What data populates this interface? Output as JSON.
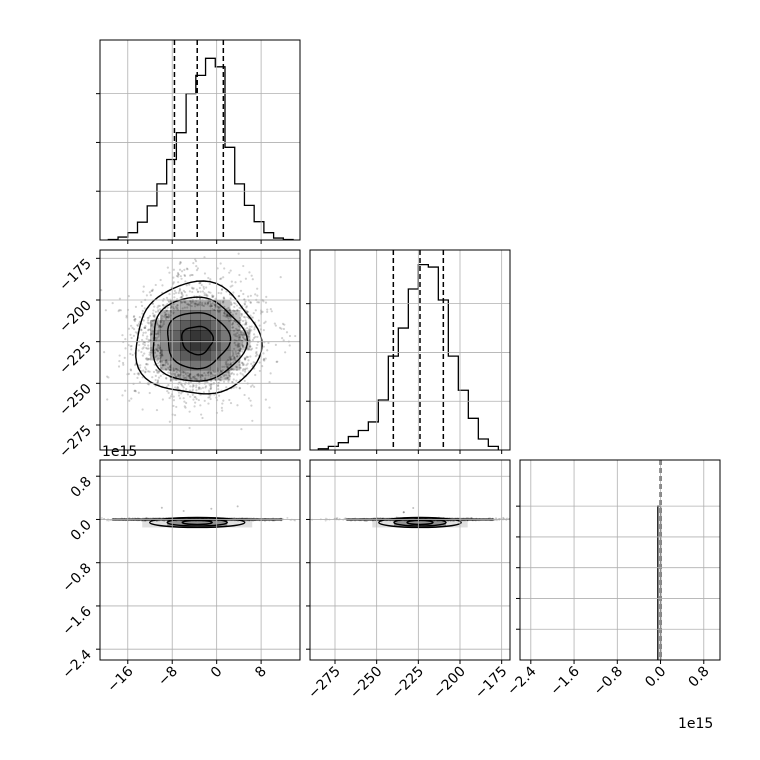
{
  "chart_data": {
    "type": "corner",
    "title": "",
    "parameters": [
      "",
      "",
      ""
    ],
    "grid": true,
    "quantiles": [
      0.16,
      0.5,
      0.84
    ],
    "offset_labels": {
      "param3": "1e15"
    },
    "colors": {
      "line": "#000000",
      "grid": "#b0b0b0",
      "hist2d": "#000000"
    },
    "histograms": [
      {
        "param": 0,
        "range": [
          -21,
          15
        ],
        "bin_edges": [
          -19.5,
          -17.75,
          -16,
          -14.25,
          -12.5,
          -10.75,
          -9,
          -7.25,
          -5.5,
          -3.75,
          -2,
          -0.25,
          1.5,
          3.25,
          5,
          6.75,
          8.5,
          10.25,
          12,
          13.75
        ],
        "counts": [
          2,
          12,
          30,
          73,
          140,
          230,
          330,
          440,
          600,
          675,
          745,
          710,
          380,
          230,
          142,
          75,
          30,
          8,
          2
        ],
        "ylim": [
          0,
          820
        ],
        "ticks_y": [
          200,
          400,
          600
        ],
        "quantile_lines": [
          -7.6,
          -3.5,
          1.2
        ]
      },
      {
        "param": 1,
        "range": [
          -290,
          -170
        ],
        "bin_edges": [
          -285,
          -279,
          -273,
          -267,
          -261,
          -255,
          -249,
          -243,
          -237,
          -231,
          -225,
          -219,
          -213,
          -207,
          -201,
          -195,
          -189,
          -183,
          -177
        ],
        "counts": [
          5,
          15,
          30,
          55,
          80,
          115,
          205,
          385,
          500,
          660,
          760,
          750,
          615,
          385,
          245,
          130,
          45,
          15
        ],
        "ylim": [
          0,
          820
        ],
        "ticks_y": [
          200,
          400,
          600
        ],
        "quantile_lines": [
          -240,
          -224,
          -210
        ]
      },
      {
        "param": 2,
        "range": [
          -2.6,
          1.1
        ],
        "bin_edges": [
          -0.05,
          0.0
        ],
        "counts": [
          1
        ],
        "ylim": [
          0,
          1.3
        ],
        "ticks_y": [
          0.2,
          0.4,
          0.6,
          0.8,
          1.0
        ],
        "quantile_lines": [
          -0.001,
          0.0,
          0.001
        ]
      }
    ],
    "axes": {
      "param0": {
        "range": [
          -21,
          15
        ],
        "ticks": [
          -16,
          -8,
          0,
          8
        ],
        "tick_labels": [
          "−16",
          "−8",
          "0",
          "8"
        ]
      },
      "param1": {
        "range": [
          -290,
          -170
        ],
        "ticks": [
          -275,
          -250,
          -225,
          -200,
          -175
        ],
        "tick_labels": [
          "−275",
          "−250",
          "−225",
          "−200",
          "−175"
        ],
        "ylabels": [
          "−175",
          "−200",
          "−225",
          "−250",
          "−275"
        ],
        "yticks": [
          -175,
          -200,
          -225,
          -250,
          -275
        ]
      },
      "param2": {
        "range": [
          -2.6,
          1.1
        ],
        "ticks": [
          -2.4,
          -1.6,
          -0.8,
          0.0,
          0.8
        ],
        "tick_labels": [
          "−2.4",
          "−1.6",
          "−0.8",
          "0.0",
          "0.8"
        ]
      }
    },
    "scatter_2d": [
      {
        "x_param": 0,
        "y_param": 1,
        "center": [
          -3.5,
          -224
        ],
        "sd": [
          5.6,
          16.8
        ],
        "points": 2600,
        "contour_levels": [
          0.5,
          1.0,
          1.5,
          2.0
        ]
      },
      {
        "x_param": 0,
        "y_param": 2,
        "center": [
          -3.5,
          0.0
        ],
        "sd": [
          4.5,
          0.02
        ]
      },
      {
        "x_param": 1,
        "y_param": 2,
        "center": [
          -224,
          0.0
        ],
        "sd": [
          13,
          0.02
        ]
      }
    ]
  }
}
